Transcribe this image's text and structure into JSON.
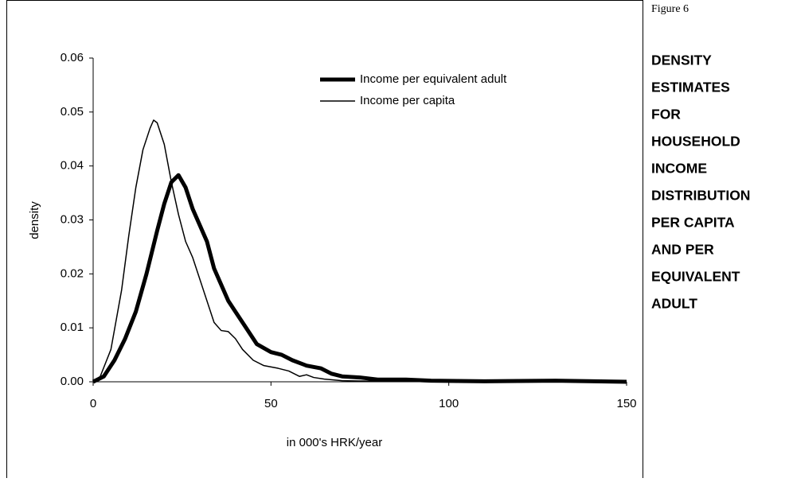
{
  "figure_label": "Figure 6",
  "caption_lines": [
    "DENSITY",
    "ESTIMATES",
    "FOR",
    "HOUSEHOLD",
    "INCOME",
    "DISTRIBUTION",
    "PER CAPITA",
    "AND PER",
    "EQUIVALENT",
    "ADULT"
  ],
  "chart_data": {
    "type": "line",
    "xlabel": "in 000's HRK/year",
    "ylabel": "density",
    "xlim": [
      0,
      150
    ],
    "xticks": [
      0,
      50,
      100,
      150
    ],
    "ylim": [
      0,
      0.06
    ],
    "yticks": [
      {
        "value": 0,
        "label": "0.00"
      },
      0.01,
      0.02,
      0.03,
      0.04,
      0.05,
      0.06
    ],
    "legend": "top",
    "series": [
      {
        "name": "Income per equivalent adult",
        "color": "#000000",
        "width": 5,
        "x": [
          0,
          3,
          6,
          9,
          12,
          15,
          18,
          20,
          22,
          24,
          26,
          28,
          30,
          32,
          34,
          36,
          38,
          40,
          43,
          46,
          50,
          53,
          56,
          60,
          64,
          67,
          70,
          75,
          80,
          88,
          95,
          110,
          130,
          150
        ],
        "values": [
          0,
          0.001,
          0.004,
          0.008,
          0.013,
          0.02,
          0.028,
          0.033,
          0.037,
          0.0383,
          0.036,
          0.032,
          0.029,
          0.026,
          0.021,
          0.018,
          0.015,
          0.013,
          0.01,
          0.007,
          0.0055,
          0.005,
          0.004,
          0.003,
          0.0025,
          0.0015,
          0.001,
          0.0008,
          0.0004,
          0.0004,
          0.0002,
          0.0001,
          0.0002,
          0
        ]
      },
      {
        "name": "Income per capita",
        "color": "#000000",
        "width": 1.5,
        "x": [
          0,
          2,
          5,
          8,
          10,
          12,
          14,
          16,
          17,
          18,
          20,
          22,
          24,
          26,
          28,
          30,
          32,
          34,
          36,
          38,
          40,
          42,
          45,
          48,
          52,
          55,
          58,
          60,
          62,
          65,
          70,
          80,
          100,
          150
        ],
        "values": [
          0,
          0.001,
          0.006,
          0.017,
          0.027,
          0.036,
          0.043,
          0.047,
          0.0485,
          0.048,
          0.044,
          0.037,
          0.031,
          0.026,
          0.023,
          0.019,
          0.015,
          0.011,
          0.0095,
          0.0093,
          0.008,
          0.006,
          0.004,
          0.003,
          0.0025,
          0.002,
          0.001,
          0.0013,
          0.0008,
          0.0005,
          0.0002,
          0.0001,
          0,
          0
        ]
      }
    ]
  }
}
